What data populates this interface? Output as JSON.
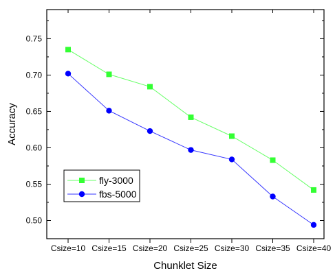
{
  "chart_data": {
    "type": "line",
    "xlabel": "Chunklet Size",
    "ylabel": "Accuracy",
    "categories": [
      "Csize=10",
      "Csize=15",
      "Csize=20",
      "Csize=25",
      "Csize=30",
      "Csize=35",
      "Csize=40"
    ],
    "ylim": [
      0.475,
      0.79
    ],
    "yticks": [
      "0.50",
      "0.55",
      "0.60",
      "0.65",
      "0.70",
      "0.75"
    ],
    "legend_position": "lower-left",
    "grid": false,
    "series": [
      {
        "name": "fly-3000",
        "values": [
          0.735,
          0.701,
          0.684,
          0.642,
          0.616,
          0.583,
          0.542
        ],
        "color": "#33ff33",
        "line_color": "#66ff66",
        "marker": "square"
      },
      {
        "name": "fbs-5000",
        "values": [
          0.702,
          0.651,
          0.623,
          0.597,
          0.584,
          0.533,
          0.494
        ],
        "color": "#0000ff",
        "line_color": "#3333ff",
        "marker": "circle"
      }
    ]
  }
}
